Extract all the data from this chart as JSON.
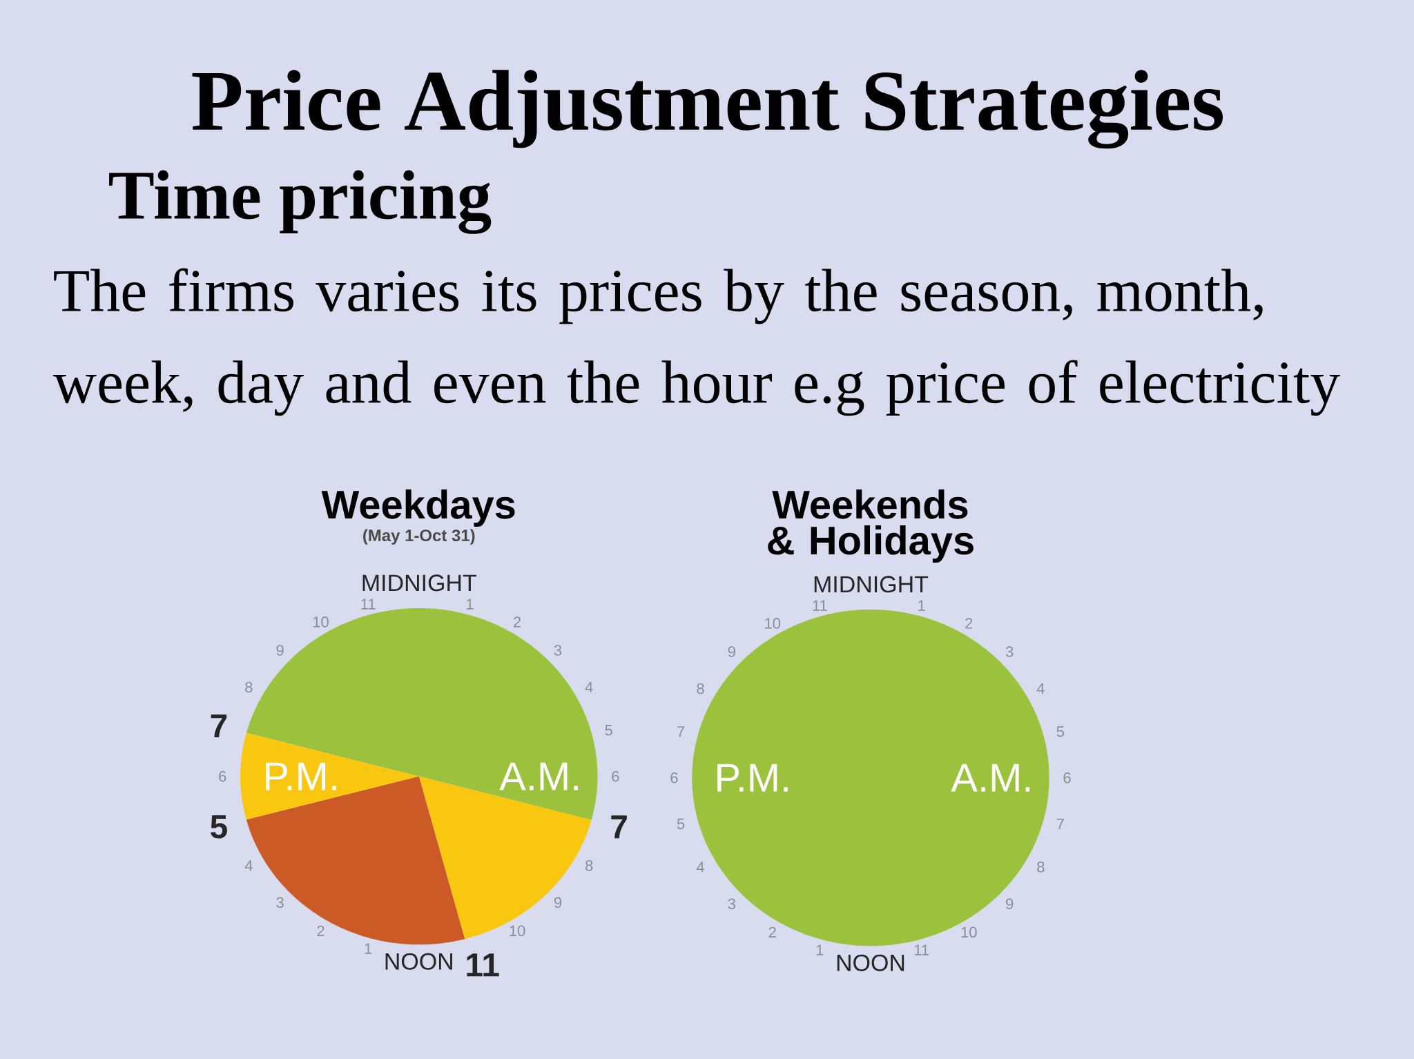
{
  "chart_data": [
    {
      "type": "other",
      "title": "Price Adjustment Strategies",
      "subtitle": "Time pricing",
      "annotations": [
        "The firms varies its prices by the season, month, week, day and even the hour e.g price of electricity"
      ]
    },
    {
      "type": "pie",
      "title": "Weekdays",
      "subtitle": "(May 1-Oct 31)",
      "categories": [
        null,
        null,
        null,
        null
      ],
      "values": [
        50,
        16.7,
        25,
        8.3
      ],
      "colors": [
        "#9cc13d",
        "#f9c70f",
        "#cc5a26",
        "#f9c70f"
      ],
      "annotations": [
        "MIDNIGHT",
        "1",
        "2",
        "3",
        "4",
        "5",
        "6",
        "7",
        "8",
        "9",
        "10",
        "11",
        "NOON",
        "1",
        "2",
        "3",
        "4",
        "5",
        "6",
        "7",
        "8",
        "9",
        "10",
        "11",
        "A.M.",
        "P.M."
      ]
    },
    {
      "type": "pie",
      "title": "Weekends & Holidays",
      "categories": [
        null
      ],
      "values": [
        100
      ],
      "colors": [
        "#9cc13d"
      ],
      "annotations": [
        "MIDNIGHT",
        "1",
        "2",
        "3",
        "4",
        "5",
        "6",
        "7",
        "8",
        "9",
        "10",
        "11",
        "NOON",
        "1",
        "2",
        "3",
        "4",
        "5",
        "6",
        "7",
        "8",
        "9",
        "10",
        "11",
        "A.M.",
        "P.M."
      ]
    }
  ]
}
